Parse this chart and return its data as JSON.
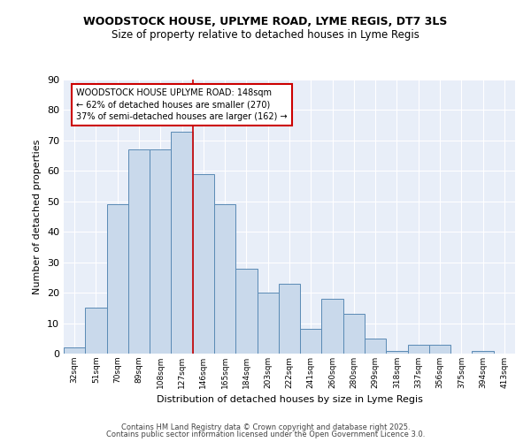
{
  "title1": "WOODSTOCK HOUSE, UPLYME ROAD, LYME REGIS, DT7 3LS",
  "title2": "Size of property relative to detached houses in Lyme Regis",
  "xlabel": "Distribution of detached houses by size in Lyme Regis",
  "ylabel": "Number of detached properties",
  "bins": [
    "32sqm",
    "51sqm",
    "70sqm",
    "89sqm",
    "108sqm",
    "127sqm",
    "146sqm",
    "165sqm",
    "184sqm",
    "203sqm",
    "222sqm",
    "241sqm",
    "260sqm",
    "280sqm",
    "299sqm",
    "318sqm",
    "337sqm",
    "356sqm",
    "375sqm",
    "394sqm",
    "413sqm"
  ],
  "values": [
    2,
    15,
    49,
    67,
    67,
    73,
    59,
    49,
    28,
    20,
    23,
    8,
    18,
    13,
    5,
    1,
    3,
    3,
    0,
    1,
    0
  ],
  "bar_color": "#c9d9eb",
  "bar_edge_color": "#5a8ab5",
  "vline_color": "#cc0000",
  "annotation_text": "WOODSTOCK HOUSE UPLYME ROAD: 148sqm\n← 62% of detached houses are smaller (270)\n37% of semi-detached houses are larger (162) →",
  "annotation_box_color": "white",
  "annotation_box_edge": "#cc0000",
  "ylim": [
    0,
    90
  ],
  "yticks": [
    0,
    10,
    20,
    30,
    40,
    50,
    60,
    70,
    80,
    90
  ],
  "bg_color": "#e8eef8",
  "grid_color": "#ffffff",
  "footer1": "Contains HM Land Registry data © Crown copyright and database right 2025.",
  "footer2": "Contains public sector information licensed under the Open Government Licence 3.0."
}
